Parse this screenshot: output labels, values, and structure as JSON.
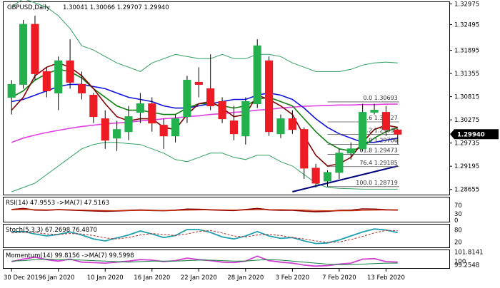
{
  "symbol": "GBPUSD,Daily",
  "ohlc": "1.30041 1.30066 1.29707 1.29940",
  "current_price": "1.29940",
  "chart_data": {
    "type": "candlestick",
    "price_axis": {
      "min": 1.2855,
      "max": 1.33,
      "ticks": [
        "1.32975",
        "1.32495",
        "1.31895",
        "1.31355",
        "1.30815",
        "1.30275",
        "1.29735",
        "1.29195",
        "1.28655"
      ]
    },
    "x_ticks": [
      {
        "label": "30 Dec 2019",
        "i": 0
      },
      {
        "label": "6 Jan 2020",
        "i": 4
      },
      {
        "label": "10 Jan 2020",
        "i": 8
      },
      {
        "label": "16 Jan 2020",
        "i": 12
      },
      {
        "label": "22 Jan 2020",
        "i": 16
      },
      {
        "label": "28 Jan 2020",
        "i": 20
      },
      {
        "label": "3 Feb 2020",
        "i": 24
      },
      {
        "label": "7 Feb 2020",
        "i": 28
      },
      {
        "label": "13 Feb 2020",
        "i": 32
      }
    ],
    "candles": [
      {
        "o": 1.308,
        "h": 1.312,
        "l": 1.304,
        "c": 1.311
      },
      {
        "o": 1.311,
        "h": 1.326,
        "l": 1.31,
        "c": 1.325
      },
      {
        "o": 1.325,
        "h": 1.327,
        "l": 1.312,
        "c": 1.3135
      },
      {
        "o": 1.314,
        "h": 1.315,
        "l": 1.308,
        "c": 1.3095
      },
      {
        "o": 1.309,
        "h": 1.3175,
        "l": 1.305,
        "c": 1.3165
      },
      {
        "o": 1.3165,
        "h": 1.3215,
        "l": 1.31,
        "c": 1.3115
      },
      {
        "o": 1.311,
        "h": 1.314,
        "l": 1.3075,
        "c": 1.309
      },
      {
        "o": 1.3085,
        "h": 1.309,
        "l": 1.302,
        "c": 1.3035
      },
      {
        "o": 1.303,
        "h": 1.305,
        "l": 1.296,
        "c": 1.298
      },
      {
        "o": 1.2985,
        "h": 1.3025,
        "l": 1.2955,
        "c": 1.3005
      },
      {
        "o": 1.3,
        "h": 1.306,
        "l": 1.298,
        "c": 1.3035
      },
      {
        "o": 1.3045,
        "h": 1.309,
        "l": 1.302,
        "c": 1.3065
      },
      {
        "o": 1.3065,
        "h": 1.308,
        "l": 1.3,
        "c": 1.302
      },
      {
        "o": 1.3015,
        "h": 1.303,
        "l": 1.296,
        "c": 1.299
      },
      {
        "o": 1.299,
        "h": 1.304,
        "l": 1.2975,
        "c": 1.303
      },
      {
        "o": 1.3035,
        "h": 1.313,
        "l": 1.302,
        "c": 1.312
      },
      {
        "o": 1.3115,
        "h": 1.315,
        "l": 1.308,
        "c": 1.311
      },
      {
        "o": 1.31,
        "h": 1.318,
        "l": 1.305,
        "c": 1.306
      },
      {
        "o": 1.307,
        "h": 1.308,
        "l": 1.302,
        "c": 1.303
      },
      {
        "o": 1.3025,
        "h": 1.306,
        "l": 1.298,
        "c": 1.2995
      },
      {
        "o": 1.299,
        "h": 1.308,
        "l": 1.297,
        "c": 1.307
      },
      {
        "o": 1.3065,
        "h": 1.3215,
        "l": 1.3055,
        "c": 1.32
      },
      {
        "o": 1.3165,
        "h": 1.3175,
        "l": 1.299,
        "c": 1.3
      },
      {
        "o": 1.2995,
        "h": 1.304,
        "l": 1.2985,
        "c": 1.303
      },
      {
        "o": 1.303,
        "h": 1.305,
        "l": 1.2995,
        "c": 1.3005
      },
      {
        "o": 1.3005,
        "h": 1.301,
        "l": 1.289,
        "c": 1.2915
      },
      {
        "o": 1.2915,
        "h": 1.2925,
        "l": 1.287,
        "c": 1.288
      },
      {
        "o": 1.2885,
        "h": 1.291,
        "l": 1.2872,
        "c": 1.2905
      },
      {
        "o": 1.2905,
        "h": 1.296,
        "l": 1.289,
        "c": 1.295
      },
      {
        "o": 1.295,
        "h": 1.2975,
        "l": 1.2935,
        "c": 1.296
      },
      {
        "o": 1.296,
        "h": 1.3065,
        "l": 1.2955,
        "c": 1.3045
      },
      {
        "o": 1.3045,
        "h": 1.3065,
        "l": 1.304,
        "c": 1.305
      },
      {
        "o": 1.3045,
        "h": 1.306,
        "l": 1.299,
        "c": 1.3005
      },
      {
        "o": 1.3004,
        "h": 1.3007,
        "l": 1.2971,
        "c": 1.2994
      }
    ],
    "fib_levels": [
      {
        "label": "0.0 1.30693",
        "value": 1.30693
      },
      {
        "label": "23.6 1.30227",
        "value": 1.30227
      },
      {
        "label": "38.2 1.29939",
        "value": 1.29939
      },
      {
        "label": "50.0 1.29706",
        "value": 1.29706
      },
      {
        "label": "61.8 1.29473",
        "value": 1.29473
      },
      {
        "label": "76.4 1.29185",
        "value": 1.29185
      },
      {
        "label": "100.0 1.28719",
        "value": 1.28719
      }
    ],
    "overlays": [
      {
        "color": "#e040e0",
        "values": [
          1.2975,
          1.2985,
          1.2992,
          1.2998,
          1.3003,
          1.3008,
          1.3012,
          1.3015,
          1.3018,
          1.302,
          1.3022,
          1.3025,
          1.3027,
          1.303,
          1.3032,
          1.3035,
          1.3037,
          1.304,
          1.3042,
          1.3045,
          1.3047,
          1.305,
          1.3052,
          1.3055,
          1.3057,
          1.3059,
          1.306,
          1.3061,
          1.3062,
          1.3062,
          1.3063,
          1.3063,
          1.3064,
          1.3064
        ]
      },
      {
        "color": "#1010e0",
        "values": [
          1.307,
          1.3075,
          1.3085,
          1.3095,
          1.3105,
          1.311,
          1.311,
          1.3105,
          1.31,
          1.309,
          1.308,
          1.3075,
          1.307,
          1.306,
          1.3055,
          1.3055,
          1.306,
          1.3065,
          1.307,
          1.3075,
          1.3075,
          1.3085,
          1.309,
          1.3085,
          1.3075,
          1.3055,
          1.303,
          1.301,
          1.2995,
          1.2985,
          1.2975,
          1.2975,
          1.298,
          1.2985
        ]
      },
      {
        "color": "#108010",
        "values": [
          1.308,
          1.3095,
          1.312,
          1.3135,
          1.3145,
          1.314,
          1.3125,
          1.31,
          1.308,
          1.306,
          1.305,
          1.305,
          1.3045,
          1.304,
          1.304,
          1.3055,
          1.3065,
          1.3065,
          1.306,
          1.3055,
          1.306,
          1.3075,
          1.308,
          1.307,
          1.306,
          1.303,
          1.3,
          1.2975,
          1.296,
          1.2955,
          1.2965,
          1.2985,
          1.3,
          1.301
        ]
      },
      {
        "color": "#800000",
        "values": [
          1.305,
          1.308,
          1.313,
          1.315,
          1.316,
          1.315,
          1.313,
          1.31,
          1.3065,
          1.3035,
          1.3025,
          1.303,
          1.303,
          1.301,
          1.3005,
          1.304,
          1.3065,
          1.307,
          1.3055,
          1.3035,
          1.304,
          1.3085,
          1.3075,
          1.306,
          1.304,
          1.299,
          1.2945,
          1.292,
          1.2925,
          1.294,
          1.2975,
          1.3005,
          1.3015,
          1.301
        ]
      },
      {
        "color": "#30a060",
        "values": [
          1.329,
          1.331,
          1.33,
          1.329,
          1.327,
          1.324,
          1.32,
          1.319,
          1.3175,
          1.316,
          1.315,
          1.314,
          1.316,
          1.317,
          1.318,
          1.3175,
          1.317,
          1.317,
          1.318,
          1.317,
          1.317,
          1.318,
          1.318,
          1.3175,
          1.316,
          1.315,
          1.314,
          1.314,
          1.314,
          1.3145,
          1.3155,
          1.316,
          1.3162,
          1.316
        ]
      },
      {
        "color": "#30a060",
        "values": [
          1.286,
          1.287,
          1.288,
          1.29,
          1.292,
          1.294,
          1.296,
          1.297,
          1.2975,
          1.2975,
          1.2972,
          1.297,
          1.296,
          1.295,
          1.2935,
          1.293,
          1.294,
          1.295,
          1.295,
          1.294,
          1.2935,
          1.2945,
          1.2945,
          1.293,
          1.292,
          1.29,
          1.288,
          1.287,
          1.2868,
          1.2867,
          1.2866,
          1.2866,
          1.2866,
          1.2866
        ]
      }
    ],
    "trendline": {
      "x1": 24,
      "y1": 1.286,
      "x2": 33,
      "y2": 1.292,
      "color": "#000080"
    },
    "rsi": {
      "label": "RSI(14) 47.9553 ->MA(7) 47.5163",
      "ticks": [
        "70",
        "30",
        "0"
      ],
      "values": [
        50,
        55,
        48,
        47,
        50,
        48,
        46,
        44,
        42,
        44,
        46,
        48,
        46,
        45,
        47,
        52,
        51,
        49,
        47,
        46,
        50,
        55,
        49,
        47,
        47,
        43,
        40,
        42,
        46,
        47,
        53,
        52,
        49,
        48
      ],
      "ma": [
        49,
        50,
        50,
        49,
        49,
        49,
        48,
        47,
        46,
        45,
        45,
        46,
        46,
        46,
        46,
        47,
        48,
        49,
        49,
        48,
        48,
        49,
        50,
        50,
        49,
        48,
        46,
        45,
        44,
        44,
        46,
        47,
        48,
        49
      ]
    },
    "stoch": {
      "label": "Stoch(5,3,3) 67.2698 76.4870",
      "ticks": [
        "80",
        "20"
      ],
      "values": [
        70,
        72,
        60,
        50,
        58,
        70,
        55,
        35,
        25,
        40,
        55,
        75,
        60,
        42,
        52,
        82,
        82,
        68,
        45,
        35,
        50,
        72,
        50,
        38,
        42,
        25,
        12,
        15,
        30,
        50,
        70,
        85,
        80,
        67
      ],
      "signal": [
        65,
        68,
        67,
        60,
        58,
        62,
        60,
        52,
        40,
        35,
        42,
        55,
        62,
        58,
        52,
        60,
        72,
        77,
        65,
        50,
        45,
        55,
        58,
        52,
        42,
        35,
        25,
        18,
        20,
        32,
        48,
        65,
        78,
        76
      ]
    },
    "momentum": {
      "label": "Momentum(14) 99.8156 ->MA(7) 99.5998",
      "ticks": [
        "101.8141",
        "100",
        "99.2548"
      ],
      "values": [
        99.9,
        100.4,
        100.8,
        100.3,
        100.0,
        100.4,
        99.8,
        99.7,
        99.6,
        99.8,
        100.0,
        100.3,
        100.2,
        99.9,
        100.1,
        100.6,
        100.3,
        100.1,
        99.8,
        99.7,
        100.0,
        101.0,
        100.1,
        99.8,
        99.6,
        99.2,
        99.0,
        99.1,
        99.4,
        99.6,
        100.4,
        100.5,
        99.9,
        99.8
      ],
      "ma": [
        100.0,
        100.1,
        100.3,
        100.4,
        100.3,
        100.3,
        100.2,
        100.1,
        100.0,
        99.9,
        99.8,
        99.9,
        100.0,
        100.0,
        100.0,
        100.1,
        100.2,
        100.2,
        100.1,
        100.0,
        100.0,
        100.2,
        100.3,
        100.2,
        100.0,
        99.8,
        99.6,
        99.4,
        99.3,
        99.3,
        99.4,
        99.5,
        99.6,
        99.6
      ]
    }
  }
}
